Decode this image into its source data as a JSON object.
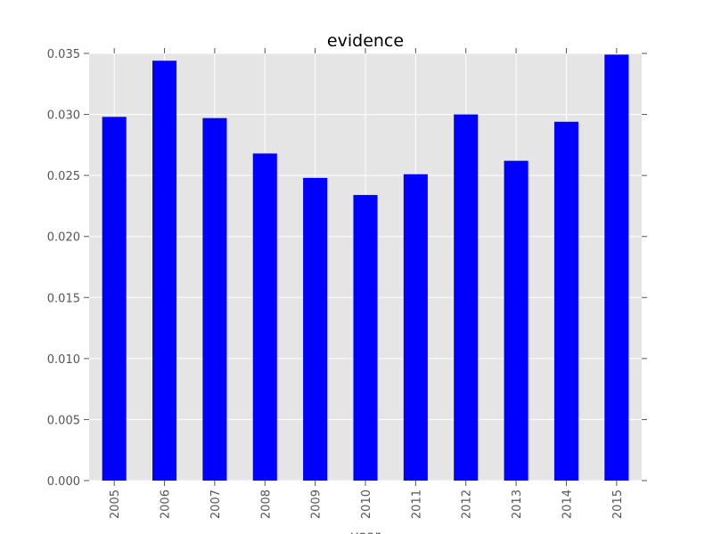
{
  "chart_data": {
    "type": "bar",
    "title": "evidence",
    "xlabel": "year",
    "ylabel": "",
    "categories": [
      "2005",
      "2006",
      "2007",
      "2008",
      "2009",
      "2010",
      "2011",
      "2012",
      "2013",
      "2014",
      "2015"
    ],
    "values": [
      0.0298,
      0.0344,
      0.0297,
      0.0268,
      0.0248,
      0.0234,
      0.0251,
      0.03,
      0.0262,
      0.0294,
      0.0349
    ],
    "ylim": [
      0,
      0.035
    ],
    "yticks": [
      "0.000",
      "0.005",
      "0.010",
      "0.015",
      "0.020",
      "0.025",
      "0.030",
      "0.035"
    ],
    "ytick_values": [
      0,
      0.005,
      0.01,
      0.015,
      0.02,
      0.025,
      0.03,
      0.035
    ],
    "grid": true,
    "bar_color": "#0000ff",
    "plot_background": "#e5e5e5",
    "grid_color": "#ffffff"
  }
}
